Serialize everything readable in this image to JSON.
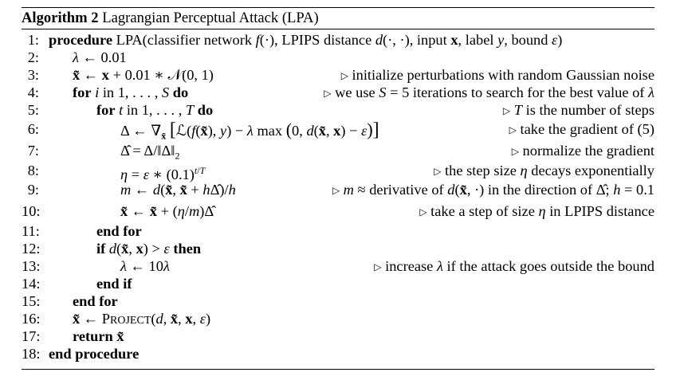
{
  "algorithm": {
    "caption_label": "Algorithm 2",
    "caption_title": "Lagrangian Perceptual Attack (LPA)",
    "lines": [
      {
        "num": "1:",
        "code": "procedure LPA(classifier network f(·), LPIPS distance d(·,·), input x, label y, bound ε)",
        "comment": ""
      },
      {
        "num": "2:",
        "code": "λ ← 0.01",
        "comment": ""
      },
      {
        "num": "3:",
        "code": "x̃ ← x + 0.01 ∗ 𝒩(0, 1)",
        "comment": "▷ initialize perturbations with random Gaussian noise"
      },
      {
        "num": "4:",
        "code": "for i in 1, . . . , S do",
        "comment": "▷ we use S = 5 iterations to search for the best value of λ"
      },
      {
        "num": "5:",
        "code": "for t in 1, . . . , T do",
        "comment": "▷ T is the number of steps"
      },
      {
        "num": "6:",
        "code": "Δ ← ∇x̃ [ℒ(f(x̃), y) − λ max (0, d(x̃, x) − ε)]",
        "comment": "▷ take the gradient of (5)"
      },
      {
        "num": "7:",
        "code": "Δ̂ = Δ/‖Δ‖₂",
        "comment": "▷ normalize the gradient"
      },
      {
        "num": "8:",
        "code": "η = ε ∗ (0.1)^(t/T)",
        "comment": "▷ the step size η decays exponentially"
      },
      {
        "num": "9:",
        "code": "m ← d(x̃, x̃ + hΔ̂)/h",
        "comment": "▷ m ≈ derivative of d(x̃, ·) in the direction of Δ̂; h = 0.1"
      },
      {
        "num": "10:",
        "code": "x̃ ← x̃ + (η/m)Δ̂",
        "comment": "▷ take a step of size η in LPIPS distance"
      },
      {
        "num": "11:",
        "code": "end for",
        "comment": ""
      },
      {
        "num": "12:",
        "code": "if d(x̃, x) > ε then",
        "comment": ""
      },
      {
        "num": "13:",
        "code": "λ ← 10λ",
        "comment": "▷ increase λ if the attack goes outside the bound"
      },
      {
        "num": "14:",
        "code": "end if",
        "comment": ""
      },
      {
        "num": "15:",
        "code": "end for",
        "comment": ""
      },
      {
        "num": "16:",
        "code": "x̃ ← Project(d, x̃, x, ε)",
        "comment": ""
      },
      {
        "num": "17:",
        "code": "return x̃",
        "comment": ""
      },
      {
        "num": "18:",
        "code": "end procedure",
        "comment": ""
      }
    ]
  }
}
